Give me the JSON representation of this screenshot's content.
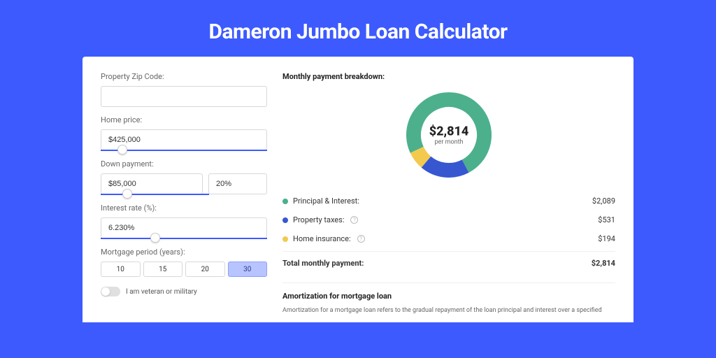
{
  "page": {
    "title": "Dameron Jumbo Loan Calculator",
    "background_color": "#3d5afe"
  },
  "form": {
    "zip": {
      "label": "Property Zip Code:",
      "value": ""
    },
    "home_price": {
      "label": "Home price:",
      "value": "$425,000",
      "slider_percent": 10
    },
    "down_payment": {
      "label": "Down payment:",
      "amount": "$85,000",
      "percent": "20%",
      "slider_percent": 20
    },
    "interest": {
      "label": "Interest rate (%):",
      "value": "6.230%",
      "slider_percent": 30
    },
    "period": {
      "label": "Mortgage period (years):",
      "options": [
        "10",
        "15",
        "20",
        "30"
      ],
      "selected_index": 3
    },
    "veteran": {
      "label": "I am veteran or military",
      "checked": false
    }
  },
  "breakdown": {
    "title": "Monthly payment breakdown:",
    "center_amount": "$2,814",
    "center_sub": "per month",
    "items": [
      {
        "label": "Principal & Interest:",
        "value": "$2,089",
        "color": "#4cb08c",
        "has_info": false,
        "percent": 74.2
      },
      {
        "label": "Property taxes:",
        "value": "$531",
        "color": "#3757d1",
        "has_info": true,
        "percent": 18.9
      },
      {
        "label": "Home insurance:",
        "value": "$194",
        "color": "#f3ca4e",
        "has_info": true,
        "percent": 6.9
      }
    ],
    "total": {
      "label": "Total monthly payment:",
      "value": "$2,814"
    },
    "donut": {
      "outer_r": 61,
      "inner_r": 40,
      "rotation_start": 155,
      "stroke_width": 21
    }
  },
  "amortization": {
    "title": "Amortization for mortgage loan",
    "text": "Amortization for a mortgage loan refers to the gradual repayment of the loan principal and interest over a specified"
  }
}
